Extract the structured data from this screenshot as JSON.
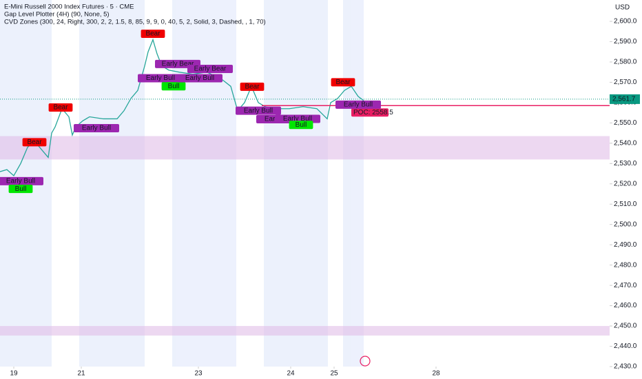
{
  "chart_data": {
    "type": "line",
    "title": "E-Mini Russell 2000 Index Futures · 5 · CME",
    "indicators": [
      "Gap Level Plotter (4H) (90, None, 5)",
      "CVD Zones (300, 24, Right, 300, 2, 2, 1.5, 8, 85, 9, 9, 0, 40, 5, 2, Solid, 3, Dashed, , 1, 70)"
    ],
    "currency": "USD",
    "xlim": [
      0,
      885
    ],
    "xticks": [
      {
        "value": 20,
        "label": "19"
      },
      {
        "value": 118,
        "label": "21"
      },
      {
        "value": 288,
        "label": "23"
      },
      {
        "value": 422,
        "label": "24"
      },
      {
        "value": 485,
        "label": "25"
      },
      {
        "value": 633,
        "label": "28"
      }
    ],
    "ylim": [
      2430,
      2600
    ],
    "yticks": [
      {
        "value": 2430,
        "label": "2,430.0"
      },
      {
        "value": 2440,
        "label": "2,440.0"
      },
      {
        "value": 2450,
        "label": "2,450.0"
      },
      {
        "value": 2460,
        "label": "2,460.0"
      },
      {
        "value": 2470,
        "label": "2,470.0"
      },
      {
        "value": 2480,
        "label": "2,480.0"
      },
      {
        "value": 2490,
        "label": "2,490.0"
      },
      {
        "value": 2500,
        "label": "2,500.0"
      },
      {
        "value": 2510,
        "label": "2,510.0"
      },
      {
        "value": 2520,
        "label": "2,520.0"
      },
      {
        "value": 2530,
        "label": "2,530.0"
      },
      {
        "value": 2540,
        "label": "2,540.0"
      },
      {
        "value": 2550,
        "label": "2,550.0"
      },
      {
        "value": 2560,
        "label": "2,560.0"
      },
      {
        "value": 2570,
        "label": "2,570.0"
      },
      {
        "value": 2580,
        "label": "2,580.0"
      },
      {
        "value": 2590,
        "label": "2,590.0"
      },
      {
        "value": 2600,
        "label": "2,600.0"
      }
    ],
    "series": [
      {
        "name": "Price",
        "color": "#26a69a",
        "x": [
          0,
          10,
          20,
          30,
          40,
          50,
          60,
          70,
          75,
          80,
          90,
          100,
          105,
          110,
          120,
          130,
          150,
          170,
          180,
          190,
          200,
          210,
          215,
          222,
          228,
          235,
          245,
          260,
          280,
          300,
          320,
          335,
          345,
          355,
          365,
          375,
          385,
          400,
          420,
          440,
          460,
          475,
          480,
          490,
          500,
          510,
          520,
          528
        ],
        "values": [
          2526,
          2527,
          2524,
          2530,
          2538,
          2541,
          2537,
          2533,
          2545,
          2548,
          2557,
          2553,
          2544,
          2548,
          2551,
          2553,
          2552,
          2552,
          2556,
          2562,
          2566,
          2578,
          2585,
          2591,
          2584,
          2578,
          2576,
          2575,
          2574,
          2575,
          2572,
          2568,
          2556,
          2560,
          2568,
          2560,
          2558,
          2557,
          2557,
          2558,
          2557,
          2552,
          2560,
          2562,
          2566,
          2568,
          2563,
          2561
        ]
      }
    ],
    "zones": [
      {
        "low": 2532,
        "high": 2543.5,
        "color": "#e1bee7"
      },
      {
        "low": 2445.3,
        "high": 2450,
        "color": "#e1bee7"
      }
    ],
    "poc": {
      "value": 2558.5,
      "label": "POC: 2558.5",
      "color": "#e91e63"
    },
    "last_price": {
      "value": 2561.7,
      "label": "2,561.7",
      "color": "#089981"
    },
    "annotations": [
      {
        "x": 30,
        "y": 2521.3,
        "text": "Early Bull",
        "color": "#9c27b0"
      },
      {
        "x": 30,
        "y": 2517.5,
        "text": "Bull",
        "color": "#00e600"
      },
      {
        "x": 50,
        "y": 2540.5,
        "text": "Bear",
        "color": "#f00000"
      },
      {
        "x": 88,
        "y": 2557.6,
        "text": "Bear",
        "color": "#f00000"
      },
      {
        "x": 140,
        "y": 2547.4,
        "text": "Early Bull",
        "color": "#9c27b0"
      },
      {
        "x": 222,
        "y": 2593.9,
        "text": "Bear",
        "color": "#f00000"
      },
      {
        "x": 258,
        "y": 2579,
        "text": "Early Bear",
        "color": "#9c27b0"
      },
      {
        "x": 305,
        "y": 2576.6,
        "text": "Early Bear",
        "color": "#9c27b0"
      },
      {
        "x": 233,
        "y": 2572,
        "text": "Early Bull",
        "color": "#9c27b0"
      },
      {
        "x": 252,
        "y": 2568,
        "text": "Bull",
        "color": "#00e600"
      },
      {
        "x": 290,
        "y": 2572,
        "text": "Early Bull",
        "color": "#9c27b0"
      },
      {
        "x": 366,
        "y": 2567.8,
        "text": "Bear",
        "color": "#f00000"
      },
      {
        "x": 375,
        "y": 2556,
        "text": "Early Bull",
        "color": "#9c27b0"
      },
      {
        "x": 405,
        "y": 2551.8,
        "text": "Early Bull",
        "color": "#9c27b0"
      },
      {
        "x": 432,
        "y": 2552,
        "text": "Early Bull",
        "color": "#9c27b0"
      },
      {
        "x": 437,
        "y": 2549,
        "text": "Bull",
        "color": "#00e600"
      },
      {
        "x": 498,
        "y": 2570,
        "text": "Bear",
        "color": "#f00000"
      },
      {
        "x": 520,
        "y": 2559,
        "text": "Early Bull",
        "color": "#9c27b0"
      }
    ]
  }
}
